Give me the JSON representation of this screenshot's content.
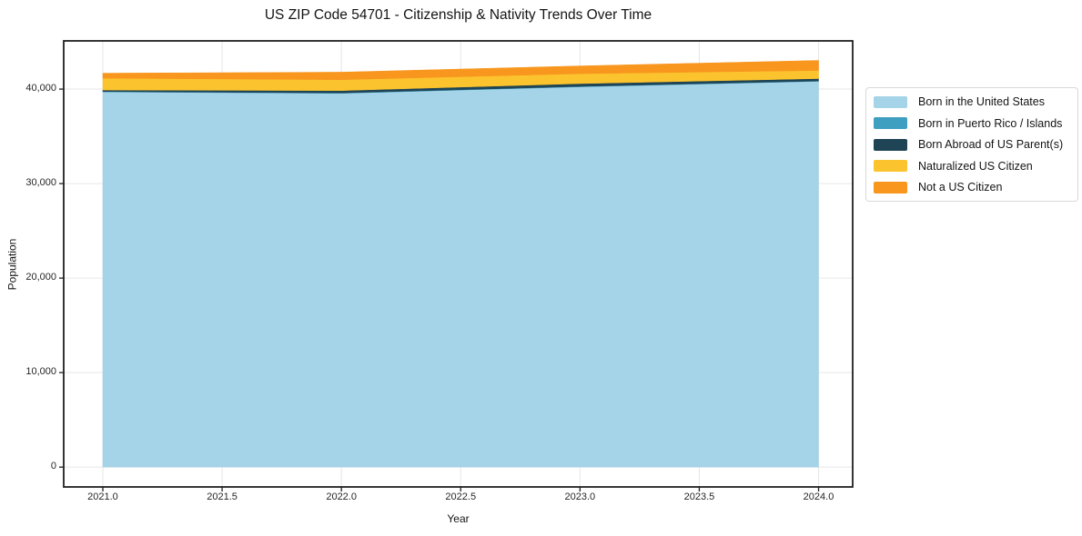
{
  "chart_data": {
    "type": "area",
    "stacked": true,
    "title": "US ZIP Code 54701 - Citizenship & Nativity Trends Over Time",
    "xlabel": "Year",
    "ylabel": "Population",
    "x": [
      2021,
      2022,
      2023,
      2024
    ],
    "series": [
      {
        "name": "Born in the United States",
        "color": "#A5D3E7",
        "values": [
          39700,
          39550,
          40240,
          40820
        ]
      },
      {
        "name": "Born in Puerto Rico / Islands",
        "color": "#3F9FC1",
        "values": [
          40,
          40,
          40,
          40
        ]
      },
      {
        "name": "Born Abroad of US Parent(s)",
        "color": "#1F4456",
        "values": [
          160,
          250,
          300,
          250
        ]
      },
      {
        "name": "Naturalized US Citizen",
        "color": "#FBC32D",
        "values": [
          1250,
          1150,
          1050,
          860
        ]
      },
      {
        "name": "Not a US Citizen",
        "color": "#F8961E",
        "values": [
          530,
          800,
          820,
          1060
        ]
      }
    ],
    "xticks": [
      2021.0,
      2021.5,
      2022.0,
      2022.5,
      2023.0,
      2023.5,
      2024.0
    ],
    "xtick_labels": [
      "2021.0",
      "2021.5",
      "2022.0",
      "2022.5",
      "2023.0",
      "2023.5",
      "2024.0"
    ],
    "yticks": [
      0,
      10000,
      20000,
      30000,
      40000
    ],
    "ytick_labels": [
      "0",
      "10,000",
      "20,000",
      "30,000",
      "40,000"
    ],
    "xlim": [
      2020.836,
      2024.143
    ],
    "ylim": [
      -2100,
      45100
    ],
    "grid": true,
    "legend_position": "right-outside",
    "grid_color": "#e6e6e6",
    "spine_color": "#1f1f1f",
    "background_color": "#ffffff"
  }
}
